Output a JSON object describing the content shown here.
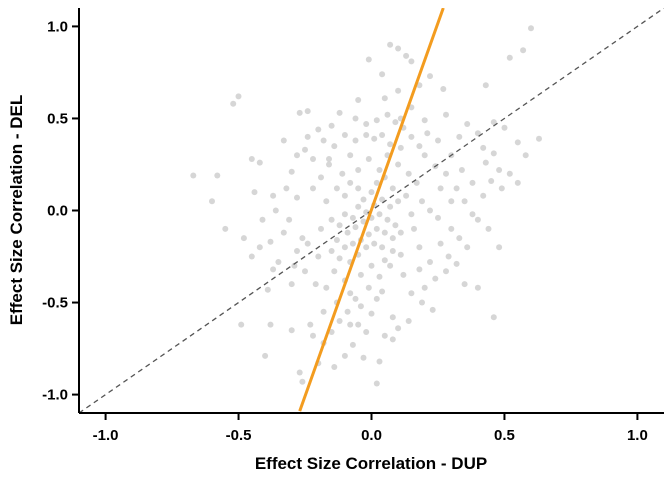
{
  "chart_data": {
    "type": "scatter",
    "title": "",
    "xlabel": "Effect Size Correlation - DUP",
    "ylabel": "Effect Size Correlation - DEL",
    "xlim": [
      -1.1,
      1.1
    ],
    "ylim": [
      -1.1,
      1.1
    ],
    "x_ticks": [
      -1.0,
      -0.5,
      0.0,
      0.5,
      1.0
    ],
    "x_tick_labels": [
      "-1.0",
      "-0.5",
      "0.0",
      "0.5",
      "1.0"
    ],
    "y_ticks": [
      -1.0,
      -0.5,
      0.0,
      0.5,
      1.0
    ],
    "y_tick_labels": [
      "-1.0",
      "-0.5",
      "0.0",
      "0.5",
      "1.0"
    ],
    "grid": false,
    "colors": {
      "points": "#c8c8c8",
      "fit_line": "#f39c1f",
      "identity_line": "#555555",
      "axis": "#000000"
    },
    "reference_lines": [
      {
        "kind": "identity",
        "style": "dashed",
        "x": [
          -1.1,
          1.1
        ],
        "y": [
          -1.1,
          1.1
        ]
      },
      {
        "kind": "fit",
        "style": "solid",
        "x": [
          -0.27,
          0.27
        ],
        "y": [
          -1.09,
          1.1
        ]
      }
    ],
    "series": [
      {
        "points": [
          [
            -0.67,
            0.19
          ],
          [
            -0.58,
            0.19
          ],
          [
            -0.52,
            0.58
          ],
          [
            -0.5,
            0.62
          ],
          [
            -0.45,
            0.28
          ],
          [
            -0.42,
            0.26
          ],
          [
            -0.41,
            -0.05
          ],
          [
            -0.39,
            -0.43
          ],
          [
            -0.37,
            -0.32
          ],
          [
            -0.35,
            -0.28
          ],
          [
            -0.49,
            -0.62
          ],
          [
            -0.4,
            -0.79
          ],
          [
            -0.38,
            -0.62
          ],
          [
            -0.3,
            0.21
          ],
          [
            -0.28,
            0.07
          ],
          [
            -0.27,
            0.53
          ],
          [
            -0.24,
            0.54
          ],
          [
            -0.3,
            -0.65
          ],
          [
            -0.27,
            -0.88
          ],
          [
            -0.26,
            -0.93
          ],
          [
            -0.23,
            -0.62
          ],
          [
            -0.2,
            -0.83
          ],
          [
            -0.18,
            -0.55
          ],
          [
            -0.14,
            -0.85
          ],
          [
            -0.1,
            -0.79
          ],
          [
            -0.07,
            -0.73
          ],
          [
            -0.05,
            -0.62
          ],
          [
            -0.03,
            -0.8
          ],
          [
            0.03,
            -0.82
          ],
          [
            0.02,
            -0.94
          ],
          [
            0.05,
            -0.68
          ],
          [
            0.08,
            -0.58
          ],
          [
            0.1,
            -0.64
          ],
          [
            0.02,
            -0.48
          ],
          [
            -0.08,
            -0.45
          ],
          [
            -0.13,
            -0.5
          ],
          [
            -0.17,
            -0.42
          ],
          [
            -0.21,
            -0.4
          ],
          [
            -0.25,
            -0.33
          ],
          [
            -0.3,
            -0.4
          ],
          [
            0.1,
            0.88
          ],
          [
            0.13,
            0.84
          ],
          [
            0.15,
            0.81
          ],
          [
            0.22,
            0.73
          ],
          [
            0.27,
            0.66
          ],
          [
            0.04,
            0.74
          ],
          [
            0.05,
            0.61
          ],
          [
            -0.05,
            0.6
          ],
          [
            -0.12,
            0.53
          ],
          [
            -0.15,
            0.46
          ],
          [
            0.11,
            0.5
          ],
          [
            0.15,
            0.56
          ],
          [
            0.2,
            0.49
          ],
          [
            0.28,
            0.52
          ],
          [
            0.33,
            0.4
          ],
          [
            0.42,
            0.34
          ],
          [
            0.46,
            0.31
          ],
          [
            0.52,
            0.2
          ],
          [
            0.58,
            0.3
          ],
          [
            0.63,
            0.39
          ],
          [
            0.57,
            0.87
          ],
          [
            0.6,
            0.99
          ],
          [
            0.52,
            0.83
          ],
          [
            0.43,
            0.68
          ],
          [
            0.46,
            0.48
          ],
          [
            0.5,
            0.45
          ],
          [
            0.55,
            0.37
          ],
          [
            0.45,
            0.16
          ],
          [
            0.42,
            0.08
          ],
          [
            0.4,
            -0.05
          ],
          [
            0.36,
            -0.2
          ],
          [
            0.32,
            -0.29
          ],
          [
            0.28,
            -0.33
          ],
          [
            0.24,
            -0.37
          ],
          [
            0.2,
            -0.42
          ],
          [
            0.15,
            -0.45
          ],
          [
            0.12,
            -0.35
          ],
          [
            0.46,
            -0.58
          ],
          [
            0.4,
            -0.42
          ],
          [
            0.35,
            -0.4
          ],
          [
            -0.6,
            0.05
          ],
          [
            -0.55,
            -0.1
          ],
          [
            -0.48,
            -0.15
          ],
          [
            -0.44,
            0.1
          ],
          [
            -0.36,
            0.0
          ],
          [
            -0.32,
            0.12
          ],
          [
            -0.33,
            -0.12
          ],
          [
            -0.26,
            -0.15
          ],
          [
            -0.25,
            0.33
          ],
          [
            -0.22,
            0.28
          ],
          [
            0.26,
            0.12
          ],
          [
            0.3,
            0.05
          ],
          [
            0.34,
            0.22
          ],
          [
            0.38,
            0.15
          ],
          [
            0.3,
            -0.1
          ],
          [
            0.25,
            -0.04
          ],
          [
            0.2,
            0.3
          ],
          [
            0.24,
            0.24
          ],
          [
            0.18,
            -0.2
          ],
          [
            0.16,
            -0.1
          ],
          [
            -0.18,
            0.38
          ],
          [
            -0.1,
            0.41
          ],
          [
            -0.06,
            0.38
          ],
          [
            -0.02,
            0.41
          ],
          [
            0.01,
            0.39
          ],
          [
            0.04,
            0.41
          ],
          [
            0.07,
            0.36
          ],
          [
            0.11,
            0.34
          ],
          [
            -0.14,
            -0.33
          ],
          [
            -0.1,
            -0.38
          ],
          [
            -0.04,
            -0.35
          ],
          [
            0.0,
            -0.3
          ],
          [
            0.05,
            -0.27
          ],
          [
            0.08,
            -0.22
          ],
          [
            0.11,
            -0.24
          ],
          [
            -0.2,
            -0.25
          ],
          [
            -0.24,
            -0.18
          ],
          [
            -0.28,
            -0.22
          ],
          [
            -0.19,
            0.18
          ],
          [
            -0.22,
            0.12
          ],
          [
            -0.17,
            0.05
          ],
          [
            -0.15,
            -0.05
          ],
          [
            -0.19,
            -0.1
          ],
          [
            -0.16,
            0.25
          ],
          [
            0.14,
            0.2
          ],
          [
            0.17,
            0.15
          ],
          [
            0.19,
            0.05
          ],
          [
            0.22,
            0.0
          ],
          [
            0.15,
            -0.02
          ],
          [
            0.13,
            0.08
          ],
          [
            0.1,
            0.25
          ],
          [
            0.06,
            0.3
          ],
          [
            0.03,
            0.22
          ],
          [
            -0.01,
            0.28
          ],
          [
            -0.05,
            0.22
          ],
          [
            -0.08,
            0.3
          ],
          [
            -0.11,
            0.2
          ],
          [
            -0.13,
            0.12
          ],
          [
            -0.1,
            0.08
          ],
          [
            -0.08,
            0.15
          ],
          [
            -0.05,
            0.12
          ],
          [
            -0.03,
            0.06
          ],
          [
            0.0,
            0.1
          ],
          [
            0.02,
            0.15
          ],
          [
            0.05,
            0.18
          ],
          [
            0.08,
            0.12
          ],
          [
            0.1,
            0.05
          ],
          [
            0.07,
            0.02
          ],
          [
            0.04,
            0.06
          ],
          [
            0.01,
            0.03
          ],
          [
            -0.02,
            -0.01
          ],
          [
            -0.05,
            0.02
          ],
          [
            -0.07,
            -0.04
          ],
          [
            -0.1,
            -0.02
          ],
          [
            -0.12,
            -0.08
          ],
          [
            -0.09,
            -0.12
          ],
          [
            -0.06,
            -0.09
          ],
          [
            -0.03,
            -0.06
          ],
          [
            0.0,
            -0.04
          ],
          [
            0.03,
            -0.02
          ],
          [
            0.06,
            -0.05
          ],
          [
            0.09,
            -0.08
          ],
          [
            0.11,
            -0.12
          ],
          [
            0.08,
            -0.15
          ],
          [
            0.05,
            -0.12
          ],
          [
            0.02,
            -0.1
          ],
          [
            -0.01,
            -0.13
          ],
          [
            -0.04,
            -0.16
          ],
          [
            -0.07,
            -0.18
          ],
          [
            -0.1,
            -0.2
          ],
          [
            -0.13,
            -0.16
          ],
          [
            -0.15,
            -0.22
          ],
          [
            -0.12,
            -0.26
          ],
          [
            -0.08,
            -0.28
          ],
          [
            -0.05,
            -0.24
          ],
          [
            -0.02,
            -0.2
          ],
          [
            0.01,
            -0.18
          ],
          [
            0.04,
            -0.2
          ],
          [
            0.07,
            -0.3
          ],
          [
            0.03,
            -0.36
          ],
          [
            -0.01,
            -0.42
          ],
          [
            -0.06,
            -0.48
          ],
          [
            -0.09,
            -0.55
          ],
          [
            -0.04,
            -0.52
          ],
          [
            0.0,
            -0.56
          ],
          [
            0.04,
            -0.44
          ],
          [
            -0.12,
            -0.6
          ],
          [
            -0.15,
            -0.66
          ],
          [
            -0.08,
            -0.62
          ],
          [
            -0.02,
            -0.66
          ],
          [
            0.12,
            0.45
          ],
          [
            0.09,
            0.48
          ],
          [
            0.06,
            0.52
          ],
          [
            0.02,
            0.49
          ],
          [
            -0.02,
            0.47
          ],
          [
            -0.06,
            0.5
          ],
          [
            0.15,
            0.4
          ],
          [
            0.18,
            0.35
          ],
          [
            0.21,
            0.42
          ],
          [
            0.25,
            0.38
          ],
          [
            0.3,
            0.3
          ],
          [
            0.28,
            0.2
          ],
          [
            0.32,
            0.12
          ],
          [
            0.35,
            0.05
          ],
          [
            0.38,
            -0.02
          ],
          [
            0.33,
            -0.15
          ],
          [
            0.29,
            -0.25
          ],
          [
            0.26,
            -0.18
          ],
          [
            0.22,
            -0.28
          ],
          [
            0.18,
            -0.32
          ],
          [
            -0.33,
            0.38
          ],
          [
            -0.28,
            0.3
          ],
          [
            -0.24,
            0.4
          ],
          [
            -0.2,
            0.44
          ],
          [
            -0.31,
            -0.05
          ],
          [
            -0.37,
            0.08
          ],
          [
            -0.42,
            -0.2
          ],
          [
            -0.45,
            -0.25
          ],
          [
            -0.38,
            -0.17
          ],
          [
            -0.29,
            -0.3
          ],
          [
            0.43,
            0.26
          ],
          [
            0.48,
            0.22
          ],
          [
            0.4,
            0.42
          ],
          [
            0.36,
            0.47
          ],
          [
            0.49,
            0.12
          ],
          [
            0.44,
            -0.1
          ],
          [
            0.48,
            -0.2
          ],
          [
            0.55,
            0.15
          ],
          [
            0.1,
            0.65
          ],
          [
            0.18,
            0.68
          ],
          [
            -0.01,
            0.82
          ],
          [
            0.07,
            0.9
          ],
          [
            -0.16,
            0.28
          ],
          [
            -0.14,
            0.35
          ],
          [
            0.19,
            -0.5
          ],
          [
            0.23,
            -0.54
          ],
          [
            0.14,
            -0.6
          ],
          [
            0.08,
            -0.7
          ],
          [
            -0.18,
            -0.72
          ],
          [
            -0.22,
            -0.68
          ]
        ]
      }
    ]
  }
}
